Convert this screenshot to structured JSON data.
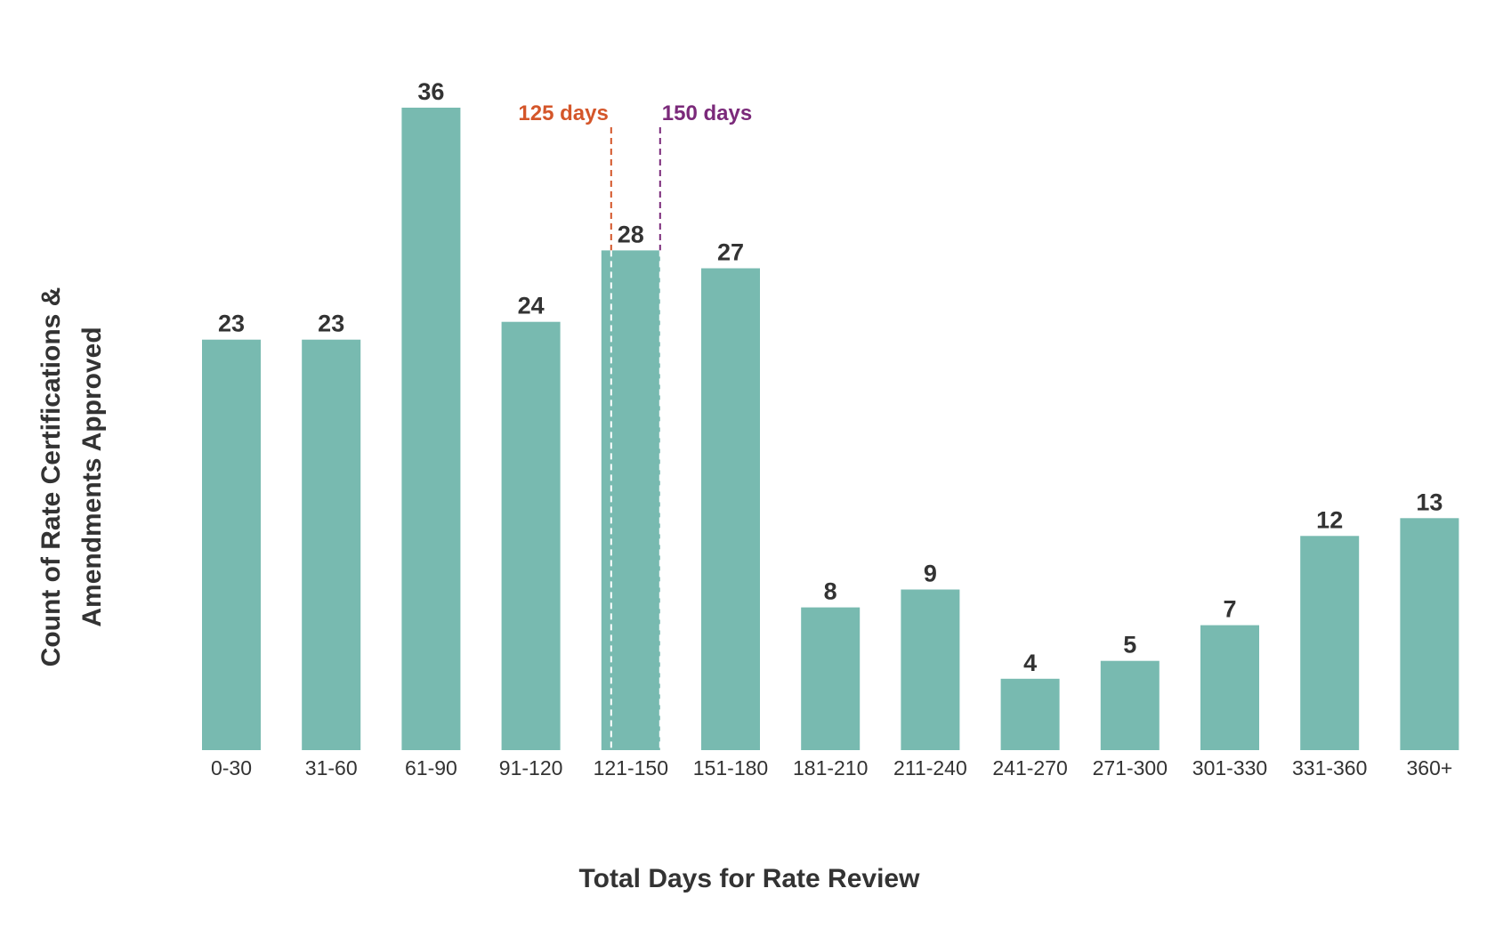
{
  "chart_data": {
    "type": "bar",
    "title": "",
    "xlabel": "Total Days for Rate Review",
    "ylabel_lines": [
      "Count of Rate Certifications &",
      "Amendments Approved"
    ],
    "categories": [
      "0-30",
      "31-60",
      "61-90",
      "91-120",
      "121-150",
      "151-180",
      "181-210",
      "211-240",
      "241-270",
      "271-300",
      "301-330",
      "331-360",
      "360+"
    ],
    "values": [
      23,
      23,
      36,
      24,
      28,
      27,
      8,
      9,
      4,
      5,
      7,
      12,
      13
    ],
    "ylim": [
      0,
      36
    ],
    "grid": false,
    "bar_color": "#78bab0",
    "reference_lines": [
      {
        "label": "125 days",
        "day": 125,
        "color": "#d4562a"
      },
      {
        "label": "150 days",
        "day": 150,
        "color": "#7b2a7a"
      }
    ]
  }
}
